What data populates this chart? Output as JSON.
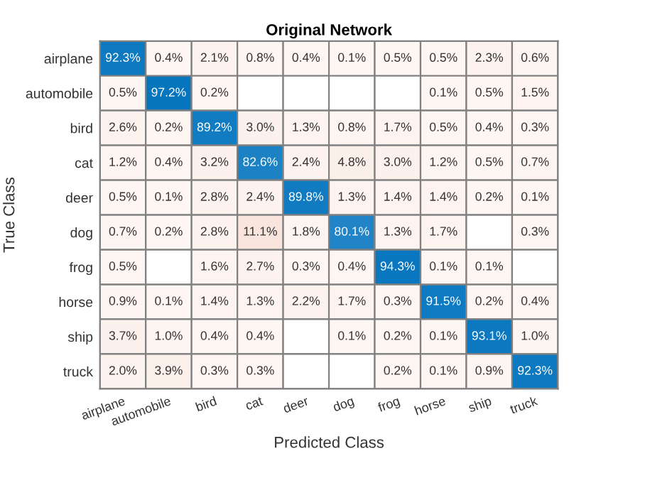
{
  "chart_data": {
    "type": "heatmap",
    "title": "Original Network",
    "xlabel": "Predicted Class",
    "ylabel": "True Class",
    "categories": [
      "airplane",
      "automobile",
      "bird",
      "cat",
      "deer",
      "dog",
      "frog",
      "horse",
      "ship",
      "truck"
    ],
    "y_categories": [
      "airplane",
      "automobile",
      "bird",
      "cat",
      "deer",
      "dog",
      "frog",
      "horse",
      "ship",
      "truck"
    ],
    "colors": [
      "#0072bd",
      "#d95319"
    ],
    "cells": [
      [
        92.3,
        0.4,
        2.1,
        0.8,
        0.4,
        0.1,
        0.5,
        0.5,
        2.3,
        0.6
      ],
      [
        0.5,
        97.2,
        0.2,
        null,
        null,
        null,
        null,
        0.1,
        0.5,
        1.5
      ],
      [
        2.6,
        0.2,
        89.2,
        3.0,
        1.3,
        0.8,
        1.7,
        0.5,
        0.4,
        0.3
      ],
      [
        1.2,
        0.4,
        3.2,
        82.6,
        2.4,
        4.8,
        3.0,
        1.2,
        0.5,
        0.7
      ],
      [
        0.5,
        0.1,
        2.8,
        2.4,
        89.8,
        1.3,
        1.4,
        1.4,
        0.2,
        0.1
      ],
      [
        0.7,
        0.2,
        2.8,
        11.1,
        1.8,
        80.1,
        1.3,
        1.7,
        null,
        0.3
      ],
      [
        0.5,
        null,
        1.6,
        2.7,
        0.3,
        0.4,
        94.3,
        0.1,
        0.1,
        null
      ],
      [
        0.9,
        0.1,
        1.4,
        1.3,
        2.2,
        1.7,
        0.3,
        91.5,
        0.2,
        0.4
      ],
      [
        3.7,
        1.0,
        0.4,
        0.4,
        null,
        0.1,
        0.2,
        0.1,
        93.1,
        1.0
      ],
      [
        2.0,
        3.9,
        0.3,
        0.3,
        null,
        null,
        0.2,
        0.1,
        0.9,
        92.3
      ]
    ],
    "cell_labels": [
      [
        "92.3%",
        "0.4%",
        "2.1%",
        "0.8%",
        "0.4%",
        "0.1%",
        "0.5%",
        "0.5%",
        "2.3%",
        "0.6%"
      ],
      [
        "0.5%",
        "97.2%",
        "0.2%",
        null,
        null,
        null,
        null,
        "0.1%",
        "0.5%",
        "1.5%"
      ],
      [
        "2.6%",
        "0.2%",
        "89.2%",
        "3.0%",
        "1.3%",
        "0.8%",
        "1.7%",
        "0.5%",
        "0.4%",
        "0.3%"
      ],
      [
        "1.2%",
        "0.4%",
        "3.2%",
        "82.6%",
        "2.4%",
        "4.8%",
        "3.0%",
        "1.2%",
        "0.5%",
        "0.7%"
      ],
      [
        "0.5%",
        "0.1%",
        "2.8%",
        "2.4%",
        "89.8%",
        "1.3%",
        "1.4%",
        "1.4%",
        "0.2%",
        "0.1%"
      ],
      [
        "0.7%",
        "0.2%",
        "2.8%",
        "11.1%",
        "1.8%",
        "80.1%",
        "1.3%",
        "1.7%",
        null,
        "0.3%"
      ],
      [
        "0.5%",
        null,
        "1.6%",
        "2.7%",
        "0.3%",
        "0.4%",
        "94.3%",
        "0.1%",
        "0.1%",
        null
      ],
      [
        "0.9%",
        "0.1%",
        "1.4%",
        "1.3%",
        "2.2%",
        "1.7%",
        "0.3%",
        "91.5%",
        "0.2%",
        "0.4%"
      ],
      [
        "3.7%",
        "1.0%",
        "0.4%",
        "0.4%",
        null,
        "0.1%",
        "0.2%",
        "0.1%",
        "93.1%",
        "1.0%"
      ],
      [
        "2.0%",
        "3.9%",
        "0.3%",
        "0.3%",
        null,
        null,
        "0.2%",
        "0.1%",
        "0.9%",
        "92.3%"
      ]
    ]
  }
}
